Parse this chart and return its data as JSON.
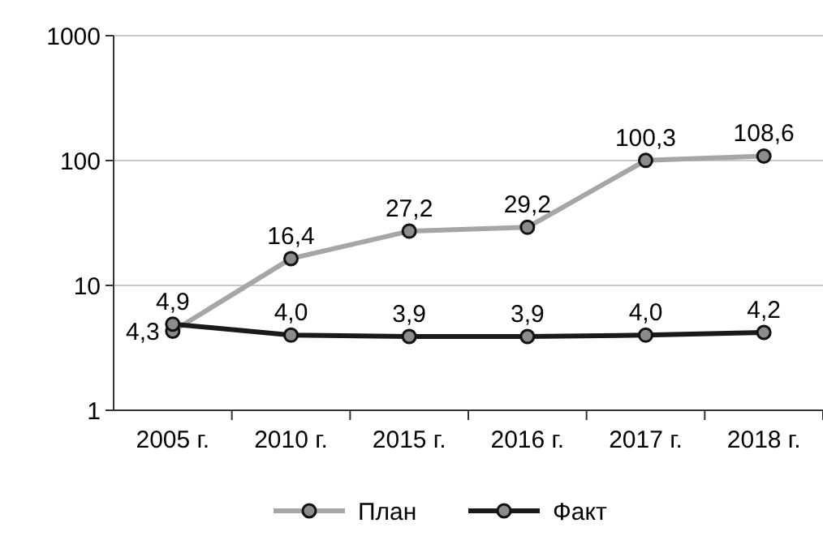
{
  "chart_data": {
    "type": "line",
    "categories": [
      "2005 г.",
      "2010 г.",
      "2015 г.",
      "2016 г.",
      "2017 г.",
      "2018 г."
    ],
    "series": [
      {
        "name": "План",
        "color": "#a6a6a6",
        "values": [
          4.3,
          16.4,
          27.2,
          29.2,
          100.3,
          108.6
        ],
        "value_labels": [
          "4,3",
          "16,4",
          "27,2",
          "29,2",
          "100,3",
          "108,6"
        ]
      },
      {
        "name": "Факт",
        "color": "#1a1a1a",
        "values": [
          4.9,
          4.0,
          3.9,
          3.9,
          4.0,
          4.2
        ],
        "value_labels": [
          "4,9",
          "4,0",
          "3,9",
          "3,9",
          "4,0",
          "4,2"
        ]
      }
    ],
    "log": true,
    "ylim": [
      1,
      1000
    ],
    "yticks": [
      1,
      10,
      100,
      1000
    ],
    "grid": "y",
    "legend": "bottom",
    "marker": "circle",
    "line_style": "solid"
  }
}
